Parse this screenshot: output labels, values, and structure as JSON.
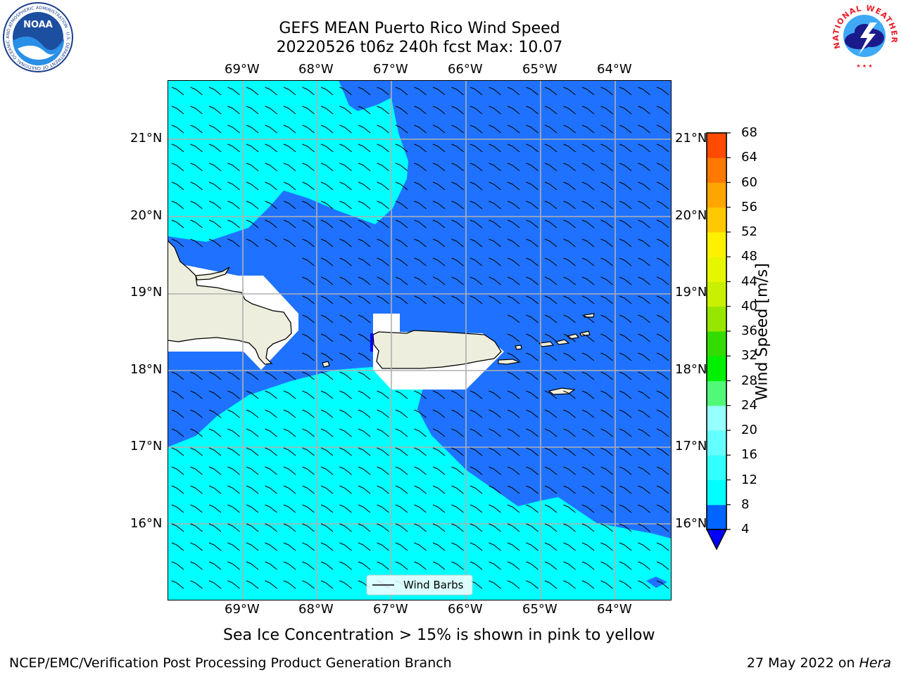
{
  "title": {
    "line1": "GEFS MEAN Puerto Rico Wind Speed",
    "line2": "20220526 t06z 240h fcst   Max: 10.07"
  },
  "logos": {
    "left": "NOAA",
    "left_ring": "NATIONAL OCEANIC AND ATMOSPHERIC ADMINISTRATION · U.S. DEPARTMENT OF COMMERCE",
    "right_ring": "NATIONAL WEATHER SERVICE"
  },
  "axes": {
    "lon_ticks": [
      "69°W",
      "68°W",
      "67°W",
      "66°W",
      "65°W",
      "64°W"
    ],
    "lat_ticks": [
      "21°N",
      "20°N",
      "19°N",
      "18°N",
      "17°N",
      "16°N"
    ]
  },
  "colorbar": {
    "label": "Wind Speed [m/s]",
    "levels": [
      "4",
      "8",
      "12",
      "16",
      "20",
      "24",
      "28",
      "32",
      "36",
      "40",
      "44",
      "48",
      "52",
      "56",
      "60",
      "64",
      "68"
    ],
    "colors": [
      "#0064ff",
      "#00ffff",
      "#32ffff",
      "#64ffff",
      "#96ffff",
      "#50fa78",
      "#00f000",
      "#32dc00",
      "#96e600",
      "#c8f000",
      "#e6f500",
      "#fff000",
      "#ffc800",
      "#ffa500",
      "#ff7800",
      "#ff4b00",
      "#ff0000"
    ],
    "under_color": "#0000ff"
  },
  "legend": {
    "label": "Wind Barbs"
  },
  "note": "Sea Ice Concentration > 15% is shown in pink to yellow",
  "footer": {
    "left": "NCEP/EMC/Verification Post Processing Product Generation Branch",
    "right_date": "27 May 2022 on ",
    "right_host": "Hera"
  },
  "colors": {
    "deep_blue": "#1f72ff",
    "cyan": "#00ffff",
    "land": "#eeeede",
    "grid": "#b0b0b0"
  }
}
